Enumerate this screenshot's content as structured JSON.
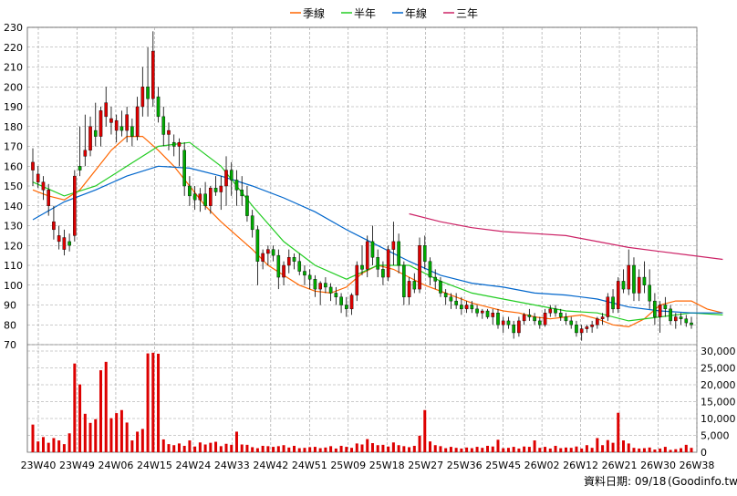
{
  "legend": [
    {
      "label": "季線",
      "color": "#ff6600"
    },
    {
      "label": "半年",
      "color": "#22cc22"
    },
    {
      "label": "年線",
      "color": "#0066cc"
    },
    {
      "label": "三年",
      "color": "#cc2266"
    }
  ],
  "date_note": "資料日期: 09/18",
  "source": "(Goodinfo.tw)",
  "colors": {
    "up": "#dd0000",
    "down": "#00aa00",
    "volume": "#dd0000",
    "grid": "#999999"
  },
  "chart_data": {
    "type": "candlestick",
    "categories": [
      "23W40",
      "23W49",
      "24W06",
      "24W15",
      "24W24",
      "24W33",
      "24W42",
      "24W51",
      "25W09",
      "25W18",
      "25W27",
      "25W36",
      "25W45",
      "26W02",
      "26W12",
      "26W21",
      "26W30",
      "26W38"
    ],
    "price_axis": {
      "ticks": [
        70,
        80,
        90,
        100,
        110,
        120,
        130,
        140,
        150,
        160,
        170,
        180,
        190,
        200,
        210,
        220,
        230
      ],
      "ylim": [
        70,
        230
      ]
    },
    "volume_axis": {
      "ticks": [
        "0",
        "5,000",
        "10,000",
        "15,000",
        "20,000",
        "25,000",
        "30,000"
      ],
      "ylim": [
        0,
        30000
      ]
    },
    "grid": true,
    "legend_position": "top-center",
    "series": [
      {
        "name": "季線",
        "points": [
          [
            0,
            148
          ],
          [
            3,
            145
          ],
          [
            6,
            143
          ],
          [
            9,
            148
          ],
          [
            12,
            158
          ],
          [
            15,
            168
          ],
          [
            18,
            175
          ],
          [
            21,
            175
          ],
          [
            24,
            168
          ],
          [
            27,
            160
          ],
          [
            30,
            150
          ],
          [
            33,
            140
          ],
          [
            36,
            132
          ],
          [
            39,
            125
          ],
          [
            42,
            118
          ],
          [
            45,
            110
          ],
          [
            48,
            105
          ],
          [
            51,
            100
          ],
          [
            54,
            97
          ],
          [
            57,
            96
          ],
          [
            60,
            99
          ],
          [
            63,
            106
          ],
          [
            66,
            110
          ],
          [
            69,
            108
          ],
          [
            72,
            104
          ],
          [
            75,
            100
          ],
          [
            78,
            97
          ],
          [
            81,
            94
          ],
          [
            84,
            91
          ],
          [
            87,
            89
          ],
          [
            90,
            87
          ],
          [
            93,
            86
          ],
          [
            96,
            84
          ],
          [
            99,
            83
          ],
          [
            102,
            84
          ],
          [
            105,
            85
          ],
          [
            108,
            83
          ],
          [
            111,
            80
          ],
          [
            114,
            79
          ],
          [
            117,
            83
          ],
          [
            120,
            90
          ],
          [
            123,
            92
          ],
          [
            126,
            92
          ],
          [
            129,
            88
          ],
          [
            132,
            86
          ]
        ]
      },
      {
        "name": "半年",
        "points": [
          [
            0,
            152
          ],
          [
            6,
            145
          ],
          [
            12,
            150
          ],
          [
            18,
            160
          ],
          [
            24,
            170
          ],
          [
            30,
            172
          ],
          [
            36,
            160
          ],
          [
            42,
            140
          ],
          [
            48,
            122
          ],
          [
            54,
            110
          ],
          [
            60,
            103
          ],
          [
            66,
            110
          ],
          [
            72,
            110
          ],
          [
            78,
            102
          ],
          [
            84,
            96
          ],
          [
            90,
            93
          ],
          [
            96,
            90
          ],
          [
            102,
            87
          ],
          [
            108,
            86
          ],
          [
            114,
            82
          ],
          [
            120,
            84
          ],
          [
            126,
            86
          ],
          [
            132,
            85
          ]
        ]
      },
      {
        "name": "年線",
        "points": [
          [
            0,
            133
          ],
          [
            6,
            142
          ],
          [
            12,
            148
          ],
          [
            18,
            155
          ],
          [
            24,
            160
          ],
          [
            30,
            159
          ],
          [
            36,
            155
          ],
          [
            42,
            150
          ],
          [
            48,
            144
          ],
          [
            54,
            137
          ],
          [
            60,
            128
          ],
          [
            66,
            120
          ],
          [
            72,
            112
          ],
          [
            78,
            105
          ],
          [
            84,
            101
          ],
          [
            90,
            99
          ],
          [
            96,
            96
          ],
          [
            102,
            95
          ],
          [
            108,
            93
          ],
          [
            114,
            89
          ],
          [
            120,
            87
          ],
          [
            126,
            86
          ],
          [
            132,
            86
          ]
        ]
      },
      {
        "name": "三年",
        "points": [
          [
            72,
            136
          ],
          [
            78,
            132
          ],
          [
            84,
            129
          ],
          [
            90,
            127
          ],
          [
            96,
            126
          ],
          [
            102,
            125
          ],
          [
            108,
            122
          ],
          [
            114,
            119
          ],
          [
            120,
            117
          ],
          [
            126,
            115
          ],
          [
            132,
            113
          ]
        ]
      }
    ],
    "candles": [
      [
        0,
        158,
        169,
        150,
        162
      ],
      [
        1,
        152,
        160,
        149,
        156
      ],
      [
        2,
        148,
        155,
        143,
        152
      ],
      [
        3,
        140,
        151,
        135,
        148
      ],
      [
        4,
        128,
        140,
        123,
        132
      ],
      [
        5,
        122,
        130,
        118,
        125
      ],
      [
        6,
        118,
        128,
        115,
        124
      ],
      [
        7,
        122,
        126,
        117,
        120
      ],
      [
        8,
        125,
        158,
        122,
        155
      ],
      [
        9,
        160,
        180,
        155,
        158
      ],
      [
        10,
        165,
        186,
        160,
        168
      ],
      [
        11,
        168,
        185,
        165,
        180
      ],
      [
        12,
        178,
        192,
        170,
        175
      ],
      [
        13,
        175,
        190,
        170,
        188
      ],
      [
        14,
        185,
        200,
        180,
        192
      ],
      [
        15,
        182,
        190,
        176,
        184
      ],
      [
        16,
        178,
        186,
        172,
        183
      ],
      [
        17,
        180,
        188,
        175,
        178
      ],
      [
        18,
        178,
        190,
        172,
        186
      ],
      [
        19,
        180,
        184,
        170,
        175
      ],
      [
        20,
        175,
        195,
        173,
        190
      ],
      [
        21,
        190,
        210,
        185,
        200
      ],
      [
        22,
        200,
        220,
        185,
        194
      ],
      [
        23,
        194,
        228,
        190,
        218
      ],
      [
        24,
        195,
        200,
        182,
        185
      ],
      [
        25,
        185,
        190,
        170,
        176
      ],
      [
        26,
        176,
        182,
        168,
        178
      ],
      [
        27,
        172,
        176,
        165,
        170
      ],
      [
        28,
        170,
        174,
        160,
        172
      ],
      [
        29,
        168,
        172,
        145,
        150
      ],
      [
        30,
        150,
        155,
        140,
        145
      ],
      [
        31,
        146,
        150,
        138,
        143
      ],
      [
        32,
        143,
        149,
        137,
        146
      ],
      [
        33,
        146,
        152,
        138,
        140
      ],
      [
        34,
        140,
        150,
        136,
        149
      ],
      [
        35,
        149,
        155,
        145,
        147
      ],
      [
        36,
        147,
        155,
        138,
        150
      ],
      [
        37,
        150,
        165,
        140,
        158
      ],
      [
        38,
        158,
        162,
        145,
        153
      ],
      [
        39,
        153,
        158,
        140,
        148
      ],
      [
        40,
        148,
        155,
        140,
        145
      ],
      [
        41,
        145,
        150,
        132,
        135
      ],
      [
        42,
        135,
        138,
        124,
        128
      ],
      [
        43,
        128,
        130,
        100,
        112
      ],
      [
        44,
        112,
        118,
        108,
        116
      ],
      [
        45,
        116,
        120,
        110,
        118
      ],
      [
        46,
        118,
        120,
        112,
        115
      ],
      [
        47,
        115,
        118,
        98,
        104
      ],
      [
        48,
        104,
        112,
        100,
        110
      ],
      [
        49,
        110,
        118,
        106,
        114
      ],
      [
        50,
        114,
        116,
        108,
        112
      ],
      [
        51,
        112,
        116,
        105,
        107
      ],
      [
        52,
        107,
        110,
        100,
        105
      ],
      [
        53,
        105,
        108,
        98,
        103
      ],
      [
        54,
        103,
        105,
        94,
        98
      ],
      [
        55,
        98,
        102,
        90,
        101
      ],
      [
        56,
        101,
        104,
        96,
        99
      ],
      [
        57,
        99,
        101,
        92,
        96
      ],
      [
        58,
        96,
        99,
        90,
        94
      ],
      [
        59,
        94,
        96,
        86,
        90
      ],
      [
        60,
        90,
        94,
        84,
        88
      ],
      [
        61,
        88,
        96,
        85,
        95
      ],
      [
        62,
        95,
        112,
        92,
        110
      ],
      [
        63,
        110,
        120,
        105,
        108
      ],
      [
        64,
        108,
        125,
        104,
        122
      ],
      [
        65,
        122,
        130,
        110,
        114
      ],
      [
        66,
        114,
        118,
        104,
        108
      ],
      [
        67,
        108,
        112,
        100,
        104
      ],
      [
        68,
        104,
        120,
        102,
        118
      ],
      [
        69,
        118,
        132,
        110,
        122
      ],
      [
        70,
        122,
        126,
        106,
        110
      ],
      [
        71,
        110,
        112,
        90,
        94
      ],
      [
        72,
        94,
        104,
        90,
        102
      ],
      [
        73,
        102,
        106,
        96,
        98
      ],
      [
        74,
        98,
        124,
        96,
        120
      ],
      [
        75,
        120,
        125,
        108,
        112
      ],
      [
        76,
        112,
        114,
        100,
        104
      ],
      [
        77,
        104,
        108,
        98,
        102
      ],
      [
        78,
        102,
        104,
        94,
        96
      ],
      [
        79,
        96,
        98,
        90,
        94
      ],
      [
        80,
        94,
        96,
        88,
        92
      ],
      [
        81,
        92,
        96,
        88,
        90
      ],
      [
        82,
        90,
        94,
        85,
        88
      ],
      [
        83,
        88,
        92,
        86,
        90
      ],
      [
        84,
        90,
        92,
        86,
        88
      ],
      [
        85,
        88,
        90,
        84,
        86
      ],
      [
        86,
        86,
        88,
        83,
        87
      ],
      [
        87,
        87,
        88,
        83,
        84
      ],
      [
        88,
        84,
        88,
        80,
        86
      ],
      [
        89,
        86,
        88,
        78,
        80
      ],
      [
        90,
        80,
        84,
        76,
        82
      ],
      [
        91,
        82,
        84,
        78,
        80
      ],
      [
        92,
        80,
        82,
        73,
        76
      ],
      [
        93,
        76,
        84,
        74,
        82
      ],
      [
        94,
        82,
        86,
        80,
        85
      ],
      [
        95,
        85,
        88,
        82,
        84
      ],
      [
        96,
        84,
        86,
        80,
        82
      ],
      [
        97,
        82,
        84,
        78,
        80
      ],
      [
        98,
        80,
        88,
        79,
        86
      ],
      [
        99,
        86,
        90,
        84,
        88
      ],
      [
        100,
        88,
        90,
        84,
        86
      ],
      [
        101,
        86,
        88,
        82,
        84
      ],
      [
        102,
        84,
        86,
        80,
        82
      ],
      [
        103,
        82,
        84,
        78,
        80
      ],
      [
        104,
        80,
        82,
        74,
        76
      ],
      [
        105,
        76,
        80,
        72,
        78
      ],
      [
        106,
        78,
        80,
        76,
        79
      ],
      [
        107,
        79,
        82,
        76,
        80
      ],
      [
        108,
        80,
        84,
        78,
        83
      ],
      [
        109,
        83,
        86,
        80,
        84
      ],
      [
        110,
        84,
        96,
        82,
        94
      ],
      [
        111,
        94,
        98,
        86,
        88
      ],
      [
        112,
        88,
        104,
        86,
        102
      ],
      [
        113,
        102,
        108,
        96,
        98
      ],
      [
        114,
        98,
        118,
        95,
        110
      ],
      [
        115,
        110,
        114,
        92,
        96
      ],
      [
        116,
        96,
        108,
        92,
        104
      ],
      [
        117,
        104,
        112,
        96,
        100
      ],
      [
        118,
        100,
        108,
        88,
        92
      ],
      [
        119,
        92,
        96,
        80,
        84
      ],
      [
        120,
        84,
        92,
        76,
        90
      ],
      [
        121,
        90,
        94,
        84,
        88
      ],
      [
        122,
        88,
        90,
        80,
        82
      ],
      [
        123,
        82,
        86,
        78,
        84
      ],
      [
        124,
        84,
        86,
        80,
        83
      ],
      [
        125,
        83,
        85,
        79,
        81
      ],
      [
        126,
        81,
        84,
        78,
        80
      ]
    ],
    "volumes": [
      8200,
      3200,
      4500,
      2800,
      4200,
      3500,
      2400,
      5600,
      26300,
      20100,
      11400,
      8700,
      9800,
      24300,
      26800,
      10100,
      11600,
      12500,
      8800,
      3500,
      6100,
      6900,
      29300,
      29500,
      29200,
      3800,
      2400,
      2100,
      2600,
      1900,
      3500,
      1700,
      2900,
      2300,
      2800,
      3100,
      1800,
      2500,
      2200,
      6100,
      2300,
      2200,
      1500,
      1200,
      1900,
      1800,
      1600,
      1800,
      2100,
      1400,
      1900,
      1200,
      1300,
      1500,
      1600,
      1200,
      1400,
      1800,
      1100,
      1900,
      1600,
      1300,
      2600,
      2300,
      3900,
      2700,
      2100,
      2200,
      1700,
      2900,
      2100,
      1800,
      1500,
      1900,
      4900,
      12500,
      3200,
      2100,
      1800,
      1200,
      1600,
      1300,
      1100,
      1400,
      1200,
      1600,
      1300,
      1900,
      1700,
      3700,
      1200,
      1300,
      1600,
      1100,
      1700,
      1600,
      3500,
      1300,
      1600,
      1100,
      1900,
      1200,
      1400,
      1300,
      1700,
      1100,
      2100,
      1300,
      4200,
      2100,
      3600,
      2800,
      11700,
      3500,
      2600,
      1300,
      1100,
      1200,
      1400,
      800,
      1100,
      1600,
      700,
      900,
      1200,
      2200,
      1300
    ]
  }
}
